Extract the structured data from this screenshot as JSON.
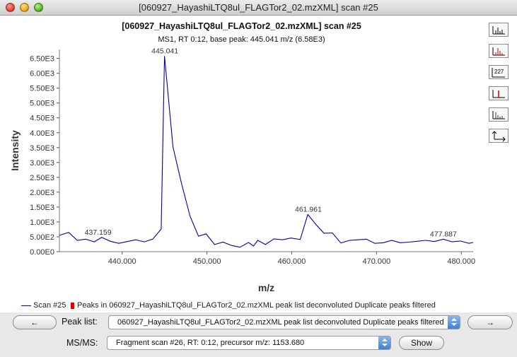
{
  "window": {
    "title": "[060927_HayashiLTQ8ul_FLAGTor2_02.mzXML] scan #25"
  },
  "chart": {
    "title": "[060927_HayashiLTQ8ul_FLAGTor2_02.mzXML] scan #25",
    "subtitle": "MS1, RT 0:12, base peak: 445.041 m/z (6.58E3)"
  },
  "chart_data": {
    "type": "line",
    "xlabel": "m/z",
    "ylabel": "Intensity",
    "xlim": [
      432.6,
      481.4
    ],
    "ylim": [
      0,
      6800
    ],
    "x_ticks": [
      440,
      450,
      460,
      470,
      480
    ],
    "x_tick_labels": [
      "440.000",
      "450.000",
      "460.000",
      "470.000",
      "480.000"
    ],
    "y_ticks": [
      0,
      500,
      1000,
      1500,
      2000,
      2500,
      3000,
      3500,
      4000,
      4500,
      5000,
      5500,
      6000,
      6500
    ],
    "y_tick_labels": [
      "0.00E0",
      "5.00E2",
      "1.00E3",
      "1.50E3",
      "2.00E3",
      "2.50E3",
      "3.00E3",
      "3.50E3",
      "4.00E3",
      "4.50E3",
      "5.00E3",
      "5.50E3",
      "6.00E3",
      "6.50E3"
    ],
    "series": [
      {
        "name": "Scan #25",
        "color": "#0000aa",
        "x": [
          432.6,
          433.7,
          434.7,
          435.7,
          436.7,
          437.6,
          438.6,
          439.6,
          440.6,
          441.6,
          442.6,
          443.6,
          444.6,
          445.0,
          446.0,
          447.0,
          448.0,
          449.0,
          449.9,
          450.9,
          451.9,
          452.9,
          453.9,
          454.9,
          455.5,
          456.0,
          456.9,
          457.9,
          458.9,
          459.9,
          461.0,
          461.9,
          462.9,
          463.8,
          464.8,
          465.8,
          466.8,
          467.8,
          468.8,
          469.8,
          470.8,
          471.8,
          472.8,
          473.8,
          474.8,
          475.8,
          476.8,
          477.9,
          478.9,
          479.9,
          480.9,
          481.4
        ],
        "y": [
          550,
          650,
          380,
          420,
          330,
          480,
          350,
          280,
          340,
          400,
          330,
          420,
          760,
          6580,
          3520,
          2300,
          1200,
          520,
          600,
          240,
          320,
          210,
          150,
          310,
          190,
          380,
          240,
          430,
          400,
          460,
          410,
          1250,
          900,
          620,
          630,
          290,
          380,
          400,
          420,
          280,
          300,
          380,
          300,
          320,
          350,
          380,
          340,
          420,
          330,
          360,
          280,
          310
        ]
      }
    ],
    "annotations": [
      {
        "x": 445.041,
        "y": 6580,
        "text": "445.041"
      },
      {
        "x": 437.159,
        "y": 480,
        "text": "437.159"
      },
      {
        "x": 461.961,
        "y": 1250,
        "text": "461.961"
      },
      {
        "x": 477.887,
        "y": 420,
        "text": "477.887"
      }
    ]
  },
  "legend": {
    "scan_label": "Scan #25",
    "peaks_label": "Peaks in 060927_HayashiLTQ8ul_FLAGTor2_02.mzXML peak list deconvoluted Duplicate peaks filtered",
    "scan_color": "#0000aa",
    "peaks_color": "#e00000"
  },
  "toolbar": {
    "buttons": [
      {
        "name": "spectrum-continuous-icon"
      },
      {
        "name": "spectrum-centroid-peaks-icon"
      },
      {
        "name": "show-annotations-icon"
      },
      {
        "name": "show-peaks-icon"
      },
      {
        "name": "spectrum-bars-icon"
      },
      {
        "name": "axes-setup-icon"
      }
    ],
    "annotation_glyph": "227"
  },
  "controls": {
    "prev_label": "←",
    "next_label": "→",
    "peak_list_label": "Peak list:",
    "peak_list_value": "060927_HayashiLTQ8ul_FLAGTor2_02.mzXML peak list deconvoluted Duplicate peaks filtered",
    "msms_label": "MS/MS:",
    "msms_value": "Fragment scan #26, RT: 0:12, precursor m/z: 1153.680",
    "show_label": "Show"
  }
}
